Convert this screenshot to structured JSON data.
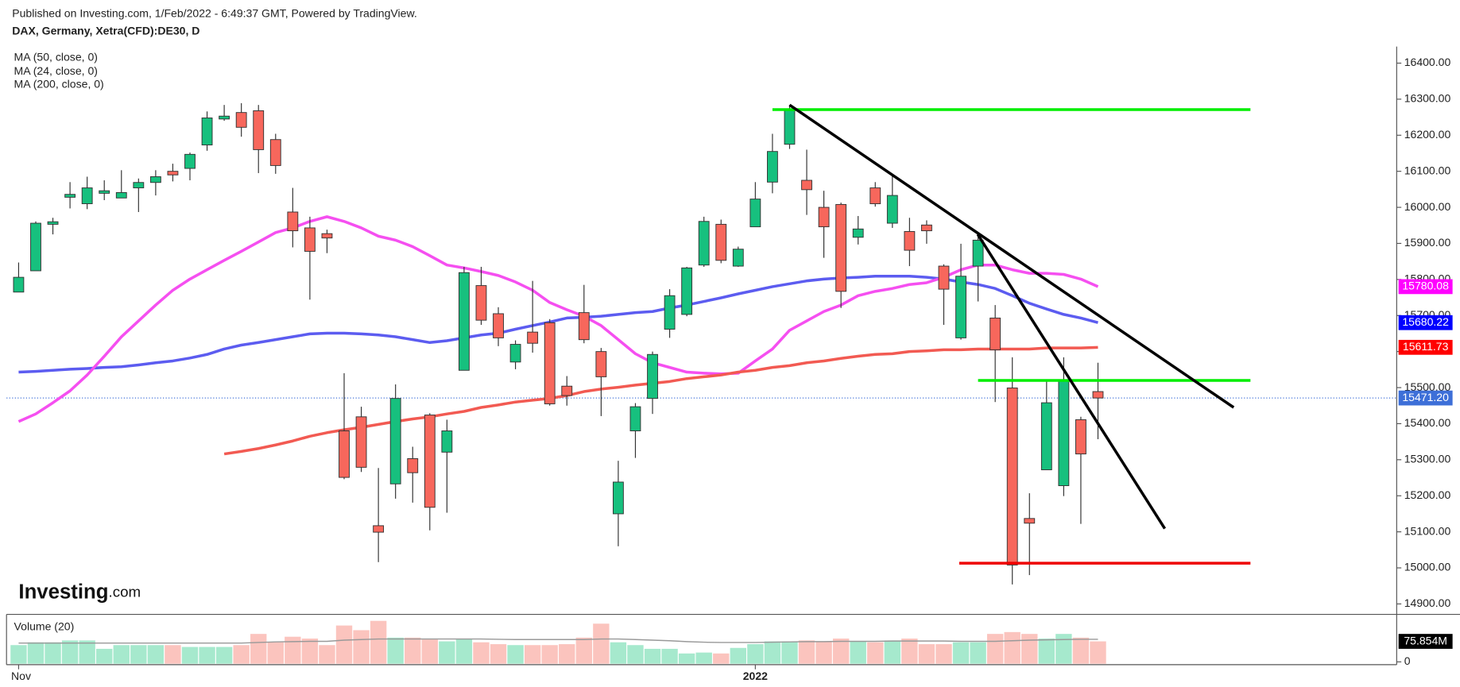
{
  "header": {
    "published": "Published on Investing.com, 1/Feb/2022 - 6:49:37 GMT, Powered by TradingView.",
    "symbol": "DAX, Germany, Xetra(CFD):DE30, D",
    "logo": "Investing",
    "logo_suffix": ".com"
  },
  "chart_data": {
    "type": "candlestick",
    "categories": [
      "Nov",
      null,
      null,
      null,
      null,
      null,
      null,
      null,
      null,
      null,
      null,
      null,
      null,
      null,
      null,
      null,
      null,
      null,
      null,
      null,
      null,
      null,
      null,
      null,
      null,
      null,
      null,
      null,
      null,
      null,
      null,
      null,
      null,
      null,
      null,
      null,
      null,
      null,
      null,
      null,
      null,
      null,
      null,
      "2022",
      null,
      null,
      null,
      null,
      null,
      null,
      null,
      null,
      null,
      null,
      null,
      null,
      null,
      null,
      null,
      null,
      null,
      null,
      null,
      null
    ],
    "open": [
      15765,
      15824,
      15953,
      16028,
      16010,
      16039,
      16026,
      16054,
      16069,
      16100,
      16108,
      16173,
      16245,
      16263,
      16268,
      16188,
      15987,
      15943,
      15927,
      15380,
      15419,
      15117,
      15233,
      15303,
      15424,
      15321,
      15548,
      15783,
      15705,
      15571,
      15654,
      15680,
      15504,
      15708,
      15600,
      15150,
      15380,
      15470,
      15662,
      15703,
      15840,
      15953,
      15837,
      15946,
      16070,
      16175,
      16075,
      16000,
      16008,
      15917,
      16054,
      15956,
      15933,
      15951,
      15837,
      15638,
      15837,
      15693,
      15499,
      15137,
      15272,
      15228,
      15411,
      15489
    ],
    "close": [
      15806,
      15956,
      15960,
      16036,
      16054,
      16046,
      16041,
      16069,
      16085,
      16090,
      16147,
      16248,
      16253,
      16222,
      16160,
      16116,
      15935,
      15878,
      15915,
      15251,
      15279,
      15099,
      15470,
      15264,
      15168,
      15380,
      15819,
      15687,
      15638,
      15620,
      15623,
      15455,
      15478,
      15633,
      15530,
      15238,
      15447,
      15592,
      15755,
      15832,
      15961,
      15853,
      15884,
      16023,
      16155,
      16273,
      16049,
      15946,
      15767,
      15940,
      16010,
      16033,
      15881,
      15935,
      15773,
      15809,
      15909,
      15605,
      15008,
      15124,
      15458,
      15522,
      15316,
      15471.2
    ],
    "high": [
      15847,
      15961,
      15971,
      16070,
      16085,
      16075,
      16103,
      16080,
      16103,
      16121,
      16152,
      16266,
      16284,
      16289,
      16284,
      16204,
      16054,
      15974,
      15938,
      15540,
      15447,
      15277,
      15509,
      15336,
      15429,
      15411,
      15835,
      15835,
      15723,
      15631,
      15796,
      15690,
      15532,
      15785,
      15610,
      15297,
      15457,
      15600,
      15773,
      15835,
      15974,
      15966,
      15891,
      16070,
      16204,
      16284,
      16160,
      16046,
      16013,
      15976,
      16070,
      16093,
      15971,
      15964,
      15842,
      15899,
      15920,
      15729,
      15584,
      15207,
      15522,
      15584,
      15419,
      15569
    ],
    "low": [
      15765,
      15824,
      15925,
      15997,
      15995,
      16020,
      16026,
      15987,
      16033,
      16072,
      16075,
      16157,
      16240,
      16196,
      16095,
      16093,
      15889,
      15744,
      15873,
      15246,
      15266,
      15016,
      15192,
      15181,
      15104,
      15153,
      15548,
      15674,
      15615,
      15551,
      15597,
      15450,
      15450,
      15623,
      15421,
      15060,
      15305,
      15427,
      15638,
      15698,
      15835,
      15845,
      15835,
      15946,
      16039,
      16162,
      15979,
      15860,
      15721,
      15897,
      16002,
      15943,
      15837,
      15899,
      15674,
      15633,
      15739,
      15460,
      14954,
      14980,
      15272,
      15199,
      15122,
      15357
    ],
    "up_color": "#17c07e",
    "down_color": "#f7675c",
    "series": [
      {
        "name": "MA (50, close, 0)",
        "color": "#5c5cf0",
        "label_color": "#0000ff",
        "values": [
          15543,
          15545,
          15548,
          15551,
          15553,
          15556,
          15558,
          15563,
          15569,
          15574,
          15582,
          15592,
          15607,
          15618,
          15625,
          15633,
          15641,
          15649,
          15651,
          15651,
          15649,
          15646,
          15641,
          15633,
          15625,
          15630,
          15638,
          15646,
          15651,
          15662,
          15672,
          15682,
          15693,
          15695,
          15698,
          15703,
          15708,
          15711,
          15721,
          15729,
          15739,
          15749,
          15760,
          15770,
          15780,
          15788,
          15796,
          15801,
          15804,
          15806,
          15809,
          15809,
          15809,
          15806,
          15801,
          15793,
          15786,
          15775,
          15755,
          15734,
          15718,
          15703,
          15693,
          15680.22
        ]
      },
      {
        "name": "MA (24, close, 0)",
        "color": "#f54ff0",
        "label_color": "#ff00ff",
        "values": [
          15406,
          15427,
          15458,
          15491,
          15535,
          15587,
          15641,
          15685,
          15729,
          15770,
          15801,
          15827,
          15853,
          15878,
          15904,
          15930,
          15943,
          15961,
          15974,
          15961,
          15943,
          15920,
          15909,
          15891,
          15866,
          15840,
          15832,
          15822,
          15811,
          15793,
          15770,
          15736,
          15716,
          15698,
          15672,
          15633,
          15594,
          15569,
          15556,
          15543,
          15540,
          15538,
          15540,
          15574,
          15607,
          15659,
          15685,
          15711,
          15729,
          15755,
          15767,
          15775,
          15786,
          15791,
          15806,
          15827,
          15840,
          15840,
          15827,
          15817,
          15817,
          15814,
          15801,
          15780.08
        ]
      },
      {
        "name": "MA (200, close, 0)",
        "color": "#f25a52",
        "label_color": "#ff0000",
        "values": [
          null,
          null,
          null,
          null,
          null,
          null,
          null,
          null,
          null,
          null,
          null,
          null,
          15316,
          15323,
          15331,
          15341,
          15352,
          15365,
          15375,
          15383,
          15390,
          15398,
          15406,
          15413,
          15419,
          15427,
          15434,
          15445,
          15452,
          15460,
          15465,
          15470,
          15478,
          15489,
          15496,
          15501,
          15507,
          15512,
          15517,
          15525,
          15530,
          15535,
          15543,
          15548,
          15556,
          15561,
          15569,
          15574,
          15581,
          15587,
          15592,
          15594,
          15600,
          15602,
          15605,
          15605,
          15607,
          15607,
          15607,
          15607,
          15610,
          15610,
          15610,
          15611.73
        ]
      }
    ],
    "last_price": {
      "value": 15471.2,
      "label": "15471.20"
    },
    "last_price_color": "#3d6fd8",
    "drawings": [
      {
        "color": "#00ee00",
        "x": [
          44.0,
          71.9
        ],
        "y": [
          16271,
          16271
        ]
      },
      {
        "color": "#00ee00",
        "x": [
          56.0,
          71.9
        ],
        "y": [
          15520,
          15520
        ]
      },
      {
        "color": "#ee0000",
        "x": [
          54.9,
          71.9
        ],
        "y": [
          15013,
          15013
        ]
      },
      {
        "color": "#000000",
        "x": [
          45.0,
          70.92
        ],
        "y": [
          16284,
          15445
        ]
      },
      {
        "color": "#000000",
        "x": [
          55.98,
          66.9
        ],
        "y": [
          15925,
          15109
        ]
      }
    ],
    "ylim": [
      14871,
      16446
    ],
    "yticks": [
      {
        "value": 14900,
        "label": "14900.00"
      },
      {
        "value": 15000,
        "label": "15000.00"
      },
      {
        "value": 15100,
        "label": "15100.00"
      },
      {
        "value": 15200,
        "label": "15200.00"
      },
      {
        "value": 15300,
        "label": "15300.00"
      },
      {
        "value": 15400,
        "label": "15400.00"
      },
      {
        "value": 15500,
        "label": "15500.00"
      },
      {
        "value": 15600,
        "label": "15600.00"
      },
      {
        "value": 15700,
        "label": "15700.00"
      },
      {
        "value": 15800,
        "label": "15800.00"
      },
      {
        "value": 15900,
        "label": "15900.00"
      },
      {
        "value": 16000,
        "label": "16000.00"
      },
      {
        "value": 16100,
        "label": "16100.00"
      },
      {
        "value": 16200,
        "label": "16200.00"
      },
      {
        "value": 16300,
        "label": "16300.00"
      },
      {
        "value": 16400,
        "label": "16400.00"
      }
    ],
    "volume": {
      "title": "Volume (20)",
      "up_color": "#a6e9cd",
      "down_color": "#fbc4be",
      "ma_color": "#999999",
      "values": [
        63.2,
        72.7,
        72.7,
        79,
        79,
        50.6,
        63.2,
        63.2,
        63.2,
        63.2,
        56.9,
        56.9,
        56.9,
        63.2,
        101.1,
        72.7,
        91.6,
        85.3,
        63.2,
        129.6,
        113.8,
        145.4,
        88.5,
        88.5,
        82.2,
        75.9,
        85.3,
        72.7,
        66.4,
        63.2,
        63.2,
        63.2,
        66.4,
        88.5,
        135.9,
        72.7,
        63.2,
        50.6,
        50.6,
        34.8,
        37.9,
        34.8,
        53.7,
        66.4,
        75.9,
        75.9,
        79,
        75.9,
        85.3,
        75.9,
        72.7,
        79,
        85.3,
        66.4,
        66.4,
        72.7,
        72.7,
        101.1,
        107.4,
        101.1,
        85.3,
        101.1,
        88.5,
        75.854
      ],
      "ma": [
        70,
        70,
        70,
        70,
        70,
        70,
        70,
        70,
        70,
        70,
        70,
        70,
        70,
        70,
        72,
        74,
        75,
        76,
        76,
        80,
        82,
        84,
        84,
        84,
        84,
        84,
        84,
        84,
        83,
        82,
        82,
        82,
        82,
        82,
        84,
        84,
        82,
        80,
        78,
        75,
        73,
        72,
        72,
        72,
        73,
        74,
        75,
        75,
        76,
        76,
        76,
        77,
        77,
        77,
        77,
        76,
        76,
        76,
        78,
        80,
        81,
        82,
        83,
        83
      ],
      "ylim": [
        0,
        150
      ],
      "yticks": [
        0,
        {
          "value": 75.854,
          "label": "75.854M"
        }
      ]
    }
  }
}
